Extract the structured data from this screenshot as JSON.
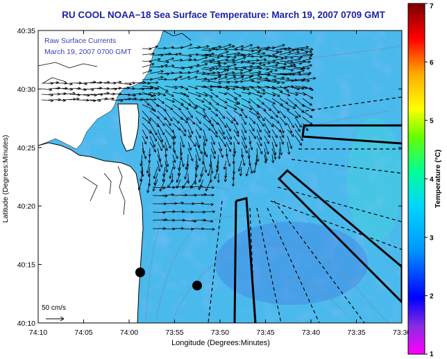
{
  "title": "RU COOL  NOAA−18  Sea Surface Temperature:  March 19, 2007 0709 GMT",
  "inset_label": {
    "line1": "Raw Surface Currents",
    "line2": "March 19, 2007 0700 GMT"
  },
  "axes": {
    "xlabel": "Longitude (Degrees:Minutes)",
    "ylabel": "Latitude (Degrees:Minutes)",
    "x_ticks": [
      "74:10",
      "74:05",
      "74:00",
      "73:55",
      "73:50",
      "73:45",
      "73:40",
      "73:35",
      "73:30"
    ],
    "y_ticks": [
      "40:35",
      "40:30",
      "40:25",
      "40:20",
      "40:15",
      "40:10"
    ]
  },
  "colorbar": {
    "label": "Temperature (°C)",
    "ticks": [
      "7",
      "6",
      "5",
      "4",
      "3",
      "2",
      "1"
    ],
    "min": 1,
    "max": 7
  },
  "scale_label": "50 cm/s",
  "colors": {
    "title": "#1c22a6",
    "land": "#ffffff",
    "ocean_base": "#49b8ec",
    "vectors": "#000000"
  }
}
